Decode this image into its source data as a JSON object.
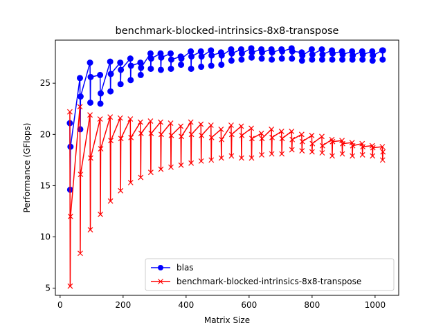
{
  "chart_data": {
    "type": "line",
    "title": "benchmark-blocked-intrinsics-8x8-transpose",
    "xlabel": "Matrix Size",
    "ylabel": "Performance (GFlops)",
    "xlim": [
      -15,
      1075
    ],
    "ylim": [
      4.3,
      29.2
    ],
    "xticks": [
      0,
      200,
      400,
      600,
      800,
      1000
    ],
    "yticks": [
      5,
      10,
      15,
      20,
      25
    ],
    "legend_position": "lower right",
    "grid": false,
    "x": [
      31,
      32,
      33,
      63,
      64,
      65,
      95,
      96,
      97,
      127,
      128,
      129,
      159,
      160,
      161,
      191,
      192,
      193,
      223,
      224,
      225,
      255,
      256,
      257,
      287,
      288,
      289,
      319,
      320,
      321,
      351,
      352,
      353,
      383,
      384,
      385,
      415,
      416,
      417,
      447,
      448,
      449,
      479,
      480,
      481,
      511,
      512,
      513,
      543,
      544,
      545,
      575,
      576,
      577,
      607,
      608,
      609,
      639,
      640,
      641,
      671,
      672,
      673,
      703,
      704,
      705,
      735,
      736,
      737,
      767,
      768,
      769,
      799,
      800,
      801,
      831,
      832,
      833,
      863,
      864,
      865,
      895,
      896,
      897,
      927,
      928,
      929,
      959,
      960,
      961,
      991,
      992,
      993,
      1023,
      1024,
      1025
    ],
    "series": [
      {
        "name": "blas",
        "color": "#0000ff",
        "marker": "circle",
        "values": [
          21.1,
          14.6,
          18.8,
          25.5,
          20.5,
          23.7,
          27.0,
          23.1,
          25.6,
          25.8,
          23.0,
          24.0,
          27.1,
          24.2,
          25.9,
          27.0,
          24.9,
          26.3,
          27.4,
          25.3,
          26.7,
          27.0,
          25.8,
          26.5,
          27.9,
          26.4,
          27.4,
          27.9,
          26.3,
          27.5,
          27.9,
          26.4,
          27.3,
          27.6,
          26.8,
          27.4,
          28.1,
          26.4,
          27.6,
          28.1,
          26.6,
          27.6,
          28.2,
          26.7,
          27.7,
          28.0,
          26.8,
          27.7,
          28.3,
          27.2,
          27.9,
          28.3,
          27.3,
          27.9,
          28.4,
          27.5,
          28.0,
          28.3,
          27.4,
          28.0,
          28.3,
          27.3,
          28.0,
          28.3,
          27.4,
          28.1,
          28.4,
          27.4,
          28.1,
          28.0,
          27.2,
          27.7,
          28.3,
          27.3,
          27.8,
          28.3,
          27.3,
          27.8,
          28.2,
          27.3,
          27.9,
          28.1,
          27.3,
          27.8,
          28.1,
          27.3,
          27.7,
          28.1,
          27.3,
          27.8,
          28.1,
          27.2,
          27.7,
          28.2,
          27.3,
          28.2
        ]
      },
      {
        "name": "benchmark-blocked-intrinsics-8x8-transpose",
        "color": "#ff0000",
        "marker": "x",
        "values": [
          22.2,
          5.2,
          12.0,
          22.7,
          8.4,
          16.1,
          21.9,
          10.7,
          17.7,
          21.5,
          12.2,
          18.6,
          21.7,
          13.5,
          19.4,
          21.6,
          14.5,
          19.6,
          21.5,
          15.3,
          19.7,
          21.2,
          15.8,
          20.1,
          21.3,
          16.3,
          20.1,
          21.2,
          16.6,
          20.0,
          21.1,
          16.8,
          19.9,
          20.8,
          17.0,
          19.8,
          21.2,
          17.2,
          20.0,
          21.0,
          17.4,
          19.9,
          20.9,
          17.5,
          19.7,
          20.5,
          17.7,
          19.5,
          20.9,
          17.9,
          20.0,
          20.8,
          17.7,
          19.9,
          20.6,
          17.7,
          19.6,
          20.1,
          18.0,
          19.6,
          20.5,
          18.1,
          19.7,
          20.3,
          18.1,
          19.6,
          20.3,
          18.5,
          19.5,
          20.0,
          18.4,
          19.3,
          19.9,
          18.3,
          19.1,
          19.8,
          18.2,
          18.9,
          19.5,
          17.9,
          19.3,
          19.4,
          18.1,
          19.1,
          19.2,
          17.9,
          18.9,
          19.1,
          18.0,
          18.8,
          18.9,
          17.9,
          18.7,
          18.8,
          17.5,
          18.3
        ]
      }
    ]
  }
}
